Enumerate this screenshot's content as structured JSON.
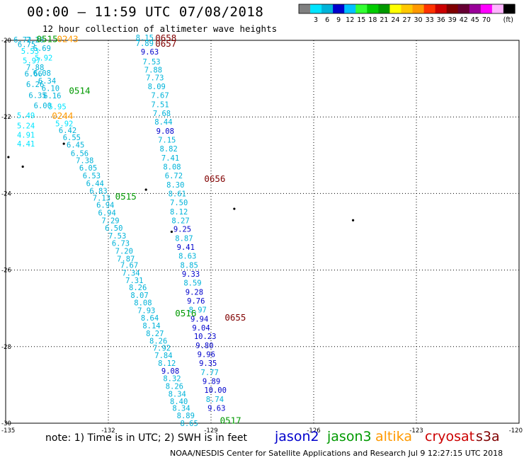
{
  "title": "00:00 – 11:59 UTC 07/08/2018",
  "subtitle": "12 hour collection of altimeter wave heights",
  "legend": {
    "unit": "(ft)",
    "ticks": [
      "3",
      "6",
      "9",
      "12",
      "15",
      "18",
      "21",
      "24",
      "27",
      "30",
      "33",
      "36",
      "39",
      "42",
      "45",
      "70"
    ],
    "colors": [
      "#808080",
      "#00e5ff",
      "#00b3d9",
      "#0000cc",
      "#00c0ff",
      "#33ff33",
      "#00cc00",
      "#009900",
      "#ffff00",
      "#ffc800",
      "#ff9900",
      "#ff3300",
      "#cc0000",
      "#800000",
      "#660033",
      "#990099",
      "#ff00ff",
      "#ffb3ff",
      "#000000"
    ]
  },
  "axes": {
    "lat_labels": [
      "-20",
      "-22",
      "-24",
      "-26",
      "-28",
      "-30"
    ],
    "lon_labels": [
      "-135",
      "-132",
      "-129",
      "-126",
      "-123",
      "-120"
    ]
  },
  "satellites": [
    {
      "name": "jason2",
      "color": "#0000cc"
    },
    {
      "name": "jason3",
      "color": "#009900"
    },
    {
      "name": "altika",
      "color": "#ff9900"
    },
    {
      "name": "cryosat",
      "color": "#cc0000"
    },
    {
      "name": "s3a",
      "color": "#800000"
    }
  ],
  "note": "note: 1) Time is in UTC; 2) SWH is in feet",
  "credit": "NOAA/NESDIS Center for Satellite Applications and Research   Jul  9 12:27:15 UTC 2018",
  "time_labels": [
    {
      "text": "0515",
      "color": "#009900",
      "lat": -19.95,
      "lon": -134.1
    },
    {
      "text": "0243",
      "color": "#ff9900",
      "lat": -19.95,
      "lon": -133.5
    },
    {
      "text": "0514",
      "color": "#009900",
      "lat": -21.3,
      "lon": -133.15
    },
    {
      "text": "0244",
      "color": "#ff9900",
      "lat": -21.96,
      "lon": -133.65
    },
    {
      "text": "0515",
      "color": "#009900",
      "lat": -24.07,
      "lon": -131.8
    },
    {
      "text": "0516",
      "color": "#009900",
      "lat": -27.12,
      "lon": -130.05
    },
    {
      "text": "0517",
      "color": "#009900",
      "lat": -29.92,
      "lon": -128.74
    },
    {
      "text": "0658",
      "color": "#800000",
      "lat": -19.93,
      "lon": -130.63
    },
    {
      "text": "0657",
      "color": "#800000",
      "lat": -20.07,
      "lon": -130.63
    },
    {
      "text": "0656",
      "color": "#800000",
      "lat": -23.6,
      "lon": -129.2
    },
    {
      "text": "0655",
      "color": "#800000",
      "lat": -27.23,
      "lon": -128.6
    }
  ],
  "tracks": [
    {
      "name": "altika-west",
      "points": [
        {
          "t": "6.72",
          "c": "#00b3d9",
          "lat": -19.98,
          "lon": -134.77
        },
        {
          "t": "7.26",
          "c": "#00b3d9",
          "lat": -19.98,
          "lon": -134.4
        },
        {
          "t": "6.75",
          "c": "#00b3d9",
          "lat": -20.1,
          "lon": -134.65
        },
        {
          "t": "6.69",
          "c": "#00b3d9",
          "lat": -20.2,
          "lon": -134.2
        },
        {
          "t": "5.53",
          "c": "#00e5ff",
          "lat": -20.28,
          "lon": -134.55
        },
        {
          "t": "5.92",
          "c": "#00e5ff",
          "lat": -20.45,
          "lon": -134.15
        },
        {
          "t": "5.97",
          "c": "#00e5ff",
          "lat": -20.53,
          "lon": -134.5
        },
        {
          "t": "7.88",
          "c": "#00b3d9",
          "lat": -20.7,
          "lon": -134.4
        },
        {
          "t": "6.66",
          "c": "#00b3d9",
          "lat": -20.87,
          "lon": -134.45
        },
        {
          "t": "6.08",
          "c": "#00b3d9",
          "lat": -20.85,
          "lon": -134.2
        },
        {
          "t": "6.34",
          "c": "#00b3d9",
          "lat": -21.05,
          "lon": -134.05
        },
        {
          "t": "6.26",
          "c": "#00b3d9",
          "lat": -21.15,
          "lon": -134.4
        },
        {
          "t": "6.10",
          "c": "#00b3d9",
          "lat": -21.25,
          "lon": -133.95
        },
        {
          "t": "6.35",
          "c": "#00b3d9",
          "lat": -21.43,
          "lon": -134.33
        },
        {
          "t": "6.16",
          "c": "#00b3d9",
          "lat": -21.44,
          "lon": -133.9
        },
        {
          "t": "6.00",
          "c": "#00b3d9",
          "lat": -21.7,
          "lon": -134.18
        },
        {
          "t": "5.95",
          "c": "#00e5ff",
          "lat": -21.73,
          "lon": -133.75
        },
        {
          "t": "5.49",
          "c": "#00e5ff",
          "lat": -21.96,
          "lon": -134.67
        },
        {
          "t": "5.92",
          "c": "#00e5ff",
          "lat": -22.17,
          "lon": -133.55
        },
        {
          "t": "5.24",
          "c": "#00e5ff",
          "lat": -22.23,
          "lon": -134.67
        },
        {
          "t": "6.42",
          "c": "#00b3d9",
          "lat": -22.35,
          "lon": -133.45
        },
        {
          "t": "4.91",
          "c": "#00e5ff",
          "lat": -22.47,
          "lon": -134.67
        },
        {
          "t": "6.55",
          "c": "#00b3d9",
          "lat": -22.53,
          "lon": -133.33
        },
        {
          "t": "4.41",
          "c": "#00e5ff",
          "lat": -22.7,
          "lon": -134.67
        },
        {
          "t": "6.45",
          "c": "#00b3d9",
          "lat": -22.73,
          "lon": -133.22
        }
      ]
    },
    {
      "name": "jason3-track",
      "points": [
        {
          "t": "6.56",
          "c": "#00b3d9",
          "lat": -22.95,
          "lon": -133.1
        },
        {
          "t": "7.38",
          "c": "#00b3d9",
          "lat": -23.13,
          "lon": -132.95
        },
        {
          "t": "6.05",
          "c": "#00b3d9",
          "lat": -23.33,
          "lon": -132.85
        },
        {
          "t": "6.53",
          "c": "#00b3d9",
          "lat": -23.53,
          "lon": -132.75
        },
        {
          "t": "6.44",
          "c": "#00b3d9",
          "lat": -23.73,
          "lon": -132.65
        },
        {
          "t": "6.83",
          "c": "#00b3d9",
          "lat": -23.93,
          "lon": -132.55
        },
        {
          "t": "7.13",
          "c": "#00b3d9",
          "lat": -24.11,
          "lon": -132.46
        },
        {
          "t": "6.94",
          "c": "#00b3d9",
          "lat": -24.3,
          "lon": -132.35
        },
        {
          "t": "6.94",
          "c": "#00b3d9",
          "lat": -24.5,
          "lon": -132.3
        },
        {
          "t": "7.29",
          "c": "#00b3d9",
          "lat": -24.7,
          "lon": -132.2
        },
        {
          "t": "6.50",
          "c": "#00b3d9",
          "lat": -24.9,
          "lon": -132.1
        },
        {
          "t": "7.53",
          "c": "#00b3d9",
          "lat": -25.1,
          "lon": -132.0
        },
        {
          "t": "6.73",
          "c": "#00b3d9",
          "lat": -25.3,
          "lon": -131.9
        },
        {
          "t": "7.20",
          "c": "#00b3d9",
          "lat": -25.5,
          "lon": -131.8
        },
        {
          "t": "7.87",
          "c": "#00b3d9",
          "lat": -25.7,
          "lon": -131.75
        },
        {
          "t": "7.67",
          "c": "#00b3d9",
          "lat": -25.87,
          "lon": -131.65
        },
        {
          "t": "7.34",
          "c": "#00b3d9",
          "lat": -26.07,
          "lon": -131.6
        },
        {
          "t": "7.31",
          "c": "#00b3d9",
          "lat": -26.27,
          "lon": -131.5
        },
        {
          "t": "8.26",
          "c": "#00b3d9",
          "lat": -26.45,
          "lon": -131.4
        },
        {
          "t": "8.07",
          "c": "#00b3d9",
          "lat": -26.65,
          "lon": -131.35
        },
        {
          "t": "8.08",
          "c": "#00b3d9",
          "lat": -26.85,
          "lon": -131.25
        },
        {
          "t": "7.93",
          "c": "#00b3d9",
          "lat": -27.05,
          "lon": -131.15
        },
        {
          "t": "8.64",
          "c": "#00b3d9",
          "lat": -27.25,
          "lon": -131.05
        },
        {
          "t": "8.14",
          "c": "#00b3d9",
          "lat": -27.45,
          "lon": -131.0
        },
        {
          "t": "8.27",
          "c": "#00b3d9",
          "lat": -27.65,
          "lon": -130.9
        },
        {
          "t": "8.26",
          "c": "#00b3d9",
          "lat": -27.85,
          "lon": -130.8
        },
        {
          "t": "7.92",
          "c": "#00b3d9",
          "lat": -28.03,
          "lon": -130.7
        },
        {
          "t": "7.84",
          "c": "#00b3d9",
          "lat": -28.23,
          "lon": -130.65
        },
        {
          "t": "8.12",
          "c": "#00b3d9",
          "lat": -28.43,
          "lon": -130.55
        },
        {
          "t": "9.08",
          "c": "#0000cc",
          "lat": -28.63,
          "lon": -130.45
        },
        {
          "t": "8.32",
          "c": "#00b3d9",
          "lat": -28.83,
          "lon": -130.4
        },
        {
          "t": "8.26",
          "c": "#00b3d9",
          "lat": -29.03,
          "lon": -130.33
        },
        {
          "t": "8.34",
          "c": "#00b3d9",
          "lat": -29.23,
          "lon": -130.25
        },
        {
          "t": "8.40",
          "c": "#00b3d9",
          "lat": -29.43,
          "lon": -130.2
        },
        {
          "t": "8.34",
          "c": "#00b3d9",
          "lat": -29.6,
          "lon": -130.13
        },
        {
          "t": "8.89",
          "c": "#00b3d9",
          "lat": -29.8,
          "lon": -130.0
        },
        {
          "t": "8.65",
          "c": "#00b3d9",
          "lat": -30.0,
          "lon": -129.9
        }
      ]
    },
    {
      "name": "s3a-track",
      "points": [
        {
          "t": "8.15",
          "c": "#00b3d9",
          "lat": -19.93,
          "lon": -131.2
        },
        {
          "t": "7.89",
          "c": "#00b3d9",
          "lat": -20.07,
          "lon": -131.2
        },
        {
          "t": "9.63",
          "c": "#0000cc",
          "lat": -20.3,
          "lon": -131.05
        },
        {
          "t": "7.53",
          "c": "#00b3d9",
          "lat": -20.55,
          "lon": -131.0
        },
        {
          "t": "7.88",
          "c": "#00b3d9",
          "lat": -20.77,
          "lon": -130.95
        },
        {
          "t": "7.73",
          "c": "#00b3d9",
          "lat": -20.97,
          "lon": -130.9
        },
        {
          "t": "8.09",
          "c": "#00b3d9",
          "lat": -21.2,
          "lon": -130.85
        },
        {
          "t": "7.67",
          "c": "#00b3d9",
          "lat": -21.43,
          "lon": -130.75
        },
        {
          "t": "7.51",
          "c": "#00b3d9",
          "lat": -21.67,
          "lon": -130.75
        },
        {
          "t": "7.68",
          "c": "#00b3d9",
          "lat": -21.9,
          "lon": -130.7
        },
        {
          "t": "8.44",
          "c": "#00b3d9",
          "lat": -22.13,
          "lon": -130.65
        },
        {
          "t": "9.08",
          "c": "#0000cc",
          "lat": -22.37,
          "lon": -130.6
        },
        {
          "t": "7.15",
          "c": "#00b3d9",
          "lat": -22.6,
          "lon": -130.55
        },
        {
          "t": "8.82",
          "c": "#00b3d9",
          "lat": -22.83,
          "lon": -130.5
        },
        {
          "t": "7.41",
          "c": "#00b3d9",
          "lat": -23.07,
          "lon": -130.45
        },
        {
          "t": "8.08",
          "c": "#00b3d9",
          "lat": -23.3,
          "lon": -130.4
        },
        {
          "t": "6.72",
          "c": "#00b3d9",
          "lat": -23.53,
          "lon": -130.35
        },
        {
          "t": "8.30",
          "c": "#00b3d9",
          "lat": -23.77,
          "lon": -130.3
        },
        {
          "t": "8.61",
          "c": "#00b3d9",
          "lat": -24.0,
          "lon": -130.25
        },
        {
          "t": "7.50",
          "c": "#00b3d9",
          "lat": -24.23,
          "lon": -130.2
        },
        {
          "t": "8.12",
          "c": "#00b3d9",
          "lat": -24.47,
          "lon": -130.2
        },
        {
          "t": "8.27",
          "c": "#00b3d9",
          "lat": -24.7,
          "lon": -130.15
        },
        {
          "t": "9.25",
          "c": "#0000cc",
          "lat": -24.93,
          "lon": -130.1
        },
        {
          "t": "8.87",
          "c": "#00b3d9",
          "lat": -25.17,
          "lon": -130.05
        },
        {
          "t": "9.41",
          "c": "#0000cc",
          "lat": -25.4,
          "lon": -130.0
        },
        {
          "t": "8.63",
          "c": "#00b3d9",
          "lat": -25.63,
          "lon": -129.95
        },
        {
          "t": "8.85",
          "c": "#00b3d9",
          "lat": -25.87,
          "lon": -129.9
        },
        {
          "t": "9.33",
          "c": "#0000cc",
          "lat": -26.1,
          "lon": -129.85
        },
        {
          "t": "8.59",
          "c": "#00b3d9",
          "lat": -26.33,
          "lon": -129.8
        },
        {
          "t": "9.28",
          "c": "#0000cc",
          "lat": -26.57,
          "lon": -129.75
        },
        {
          "t": "9.76",
          "c": "#0000cc",
          "lat": -26.8,
          "lon": -129.7
        },
        {
          "t": "8.97",
          "c": "#00b3d9",
          "lat": -27.03,
          "lon": -129.65
        },
        {
          "t": "9.94",
          "c": "#0000cc",
          "lat": -27.27,
          "lon": -129.6
        },
        {
          "t": "9.04",
          "c": "#0000cc",
          "lat": -27.5,
          "lon": -129.55
        },
        {
          "t": "10.23",
          "c": "#0000cc",
          "lat": -27.73,
          "lon": -129.5
        },
        {
          "t": "9.80",
          "c": "#0000cc",
          "lat": -27.97,
          "lon": -129.45
        },
        {
          "t": "9.96",
          "c": "#0000cc",
          "lat": -28.2,
          "lon": -129.4
        },
        {
          "t": "9.35",
          "c": "#0000cc",
          "lat": -28.43,
          "lon": -129.35
        },
        {
          "t": "7.77",
          "c": "#00b3d9",
          "lat": -28.67,
          "lon": -129.3
        },
        {
          "t": "9.89",
          "c": "#0000cc",
          "lat": -28.9,
          "lon": -129.25
        },
        {
          "t": "10.00",
          "c": "#0000cc",
          "lat": -29.13,
          "lon": -129.2
        },
        {
          "t": "8.74",
          "c": "#00b3d9",
          "lat": -29.37,
          "lon": -129.15
        },
        {
          "t": "9.63",
          "c": "#0000cc",
          "lat": -29.6,
          "lon": -129.1
        }
      ]
    }
  ],
  "islands": [
    {
      "lat": -22.7,
      "lon": -133.3
    },
    {
      "lat": -23.3,
      "lon": -134.5
    },
    {
      "lat": -23.9,
      "lon": -130.9
    },
    {
      "lat": -24.4,
      "lon": -128.32
    },
    {
      "lat": -24.7,
      "lon": -124.85
    },
    {
      "lat": -25.0,
      "lon": -130.15
    },
    {
      "lat": -23.05,
      "lon": -134.92
    }
  ]
}
